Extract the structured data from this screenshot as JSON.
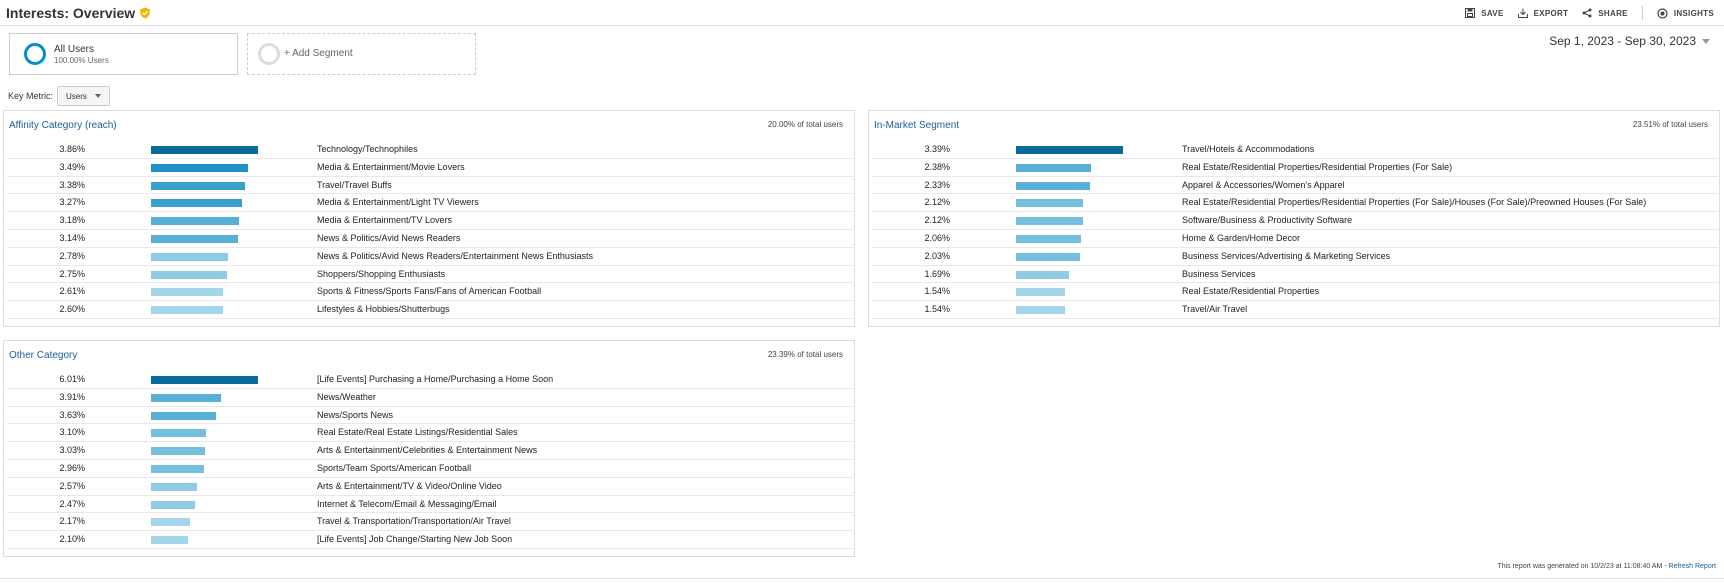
{
  "header": {
    "title": "Interests: Overview",
    "actions": {
      "save": "SAVE",
      "export": "EXPORT",
      "share": "SHARE",
      "insights": "INSIGHTS"
    }
  },
  "segments": {
    "primary": {
      "name": "All Users",
      "sub": "100.00% Users"
    },
    "add": {
      "label": "+ Add Segment"
    }
  },
  "date_range": "Sep 1, 2023 - Sep 30, 2023",
  "key_metric": {
    "label": "Key Metric:",
    "value": "Users"
  },
  "panels": {
    "affinity": {
      "title": "Affinity Category (reach)",
      "total": "20.00% of total users",
      "rows": [
        {
          "pct": "3.86%",
          "value": 3.86,
          "label": "Technology/Technophiles"
        },
        {
          "pct": "3.49%",
          "value": 3.49,
          "label": "Media & Entertainment/Movie Lovers"
        },
        {
          "pct": "3.38%",
          "value": 3.38,
          "label": "Travel/Travel Buffs"
        },
        {
          "pct": "3.27%",
          "value": 3.27,
          "label": "Media & Entertainment/Light TV Viewers"
        },
        {
          "pct": "3.18%",
          "value": 3.18,
          "label": "Media & Entertainment/TV Lovers"
        },
        {
          "pct": "3.14%",
          "value": 3.14,
          "label": "News & Politics/Avid News Readers"
        },
        {
          "pct": "2.78%",
          "value": 2.78,
          "label": "News & Politics/Avid News Readers/Entertainment News Enthusiasts"
        },
        {
          "pct": "2.75%",
          "value": 2.75,
          "label": "Shoppers/Shopping Enthusiasts"
        },
        {
          "pct": "2.61%",
          "value": 2.61,
          "label": "Sports & Fitness/Sports Fans/Fans of American Football"
        },
        {
          "pct": "2.60%",
          "value": 2.6,
          "label": "Lifestyles & Hobbies/Shutterbugs"
        }
      ]
    },
    "market": {
      "title": "In-Market Segment",
      "total": "23.51% of total users",
      "rows": [
        {
          "pct": "3.39%",
          "value": 3.39,
          "label": "Travel/Hotels & Accommodations"
        },
        {
          "pct": "2.38%",
          "value": 2.38,
          "label": "Real Estate/Residential Properties/Residential Properties (For Sale)"
        },
        {
          "pct": "2.33%",
          "value": 2.33,
          "label": "Apparel & Accessories/Women's Apparel"
        },
        {
          "pct": "2.12%",
          "value": 2.12,
          "label": "Real Estate/Residential Properties/Residential Properties (For Sale)/Houses (For Sale)/Preowned Houses (For Sale)"
        },
        {
          "pct": "2.12%",
          "value": 2.12,
          "label": "Software/Business & Productivity Software"
        },
        {
          "pct": "2.06%",
          "value": 2.06,
          "label": "Home & Garden/Home Decor"
        },
        {
          "pct": "2.03%",
          "value": 2.03,
          "label": "Business Services/Advertising & Marketing Services"
        },
        {
          "pct": "1.69%",
          "value": 1.69,
          "label": "Business Services"
        },
        {
          "pct": "1.54%",
          "value": 1.54,
          "label": "Real Estate/Residential Properties"
        },
        {
          "pct": "1.54%",
          "value": 1.54,
          "label": "Travel/Air Travel"
        }
      ]
    },
    "other": {
      "title": "Other Category",
      "total": "23.39% of total users",
      "rows": [
        {
          "pct": "6.01%",
          "value": 6.01,
          "label": "[Life Events] Purchasing a Home/Purchasing a Home Soon"
        },
        {
          "pct": "3.91%",
          "value": 3.91,
          "label": "News/Weather"
        },
        {
          "pct": "3.63%",
          "value": 3.63,
          "label": "News/Sports News"
        },
        {
          "pct": "3.10%",
          "value": 3.1,
          "label": "Real Estate/Real Estate Listings/Residential Sales"
        },
        {
          "pct": "3.03%",
          "value": 3.03,
          "label": "Arts & Entertainment/Celebrities & Entertainment News"
        },
        {
          "pct": "2.96%",
          "value": 2.96,
          "label": "Sports/Team Sports/American Football"
        },
        {
          "pct": "2.57%",
          "value": 2.57,
          "label": "Arts & Entertainment/TV & Video/Online Video"
        },
        {
          "pct": "2.47%",
          "value": 2.47,
          "label": "Internet & Telecom/Email & Messaging/Email"
        },
        {
          "pct": "2.17%",
          "value": 2.17,
          "label": "Travel & Transportation/Transportation/Air Travel"
        },
        {
          "pct": "2.10%",
          "value": 2.1,
          "label": "[Life Events] Job Change/Starting New Job Soon"
        }
      ]
    }
  },
  "footer": {
    "text": "This report was generated on 10/2/23 at 11:08:40 AM -",
    "link": "Refresh Report"
  },
  "colors": {
    "bar_shades": [
      "#0b6a9e",
      "#127fb5",
      "#2190c2",
      "#3aa0cc",
      "#58b0d6",
      "#74bfde",
      "#8ecbe4",
      "#a3d6ea"
    ],
    "accent": "#058dc7",
    "link": "#1a5e96"
  }
}
